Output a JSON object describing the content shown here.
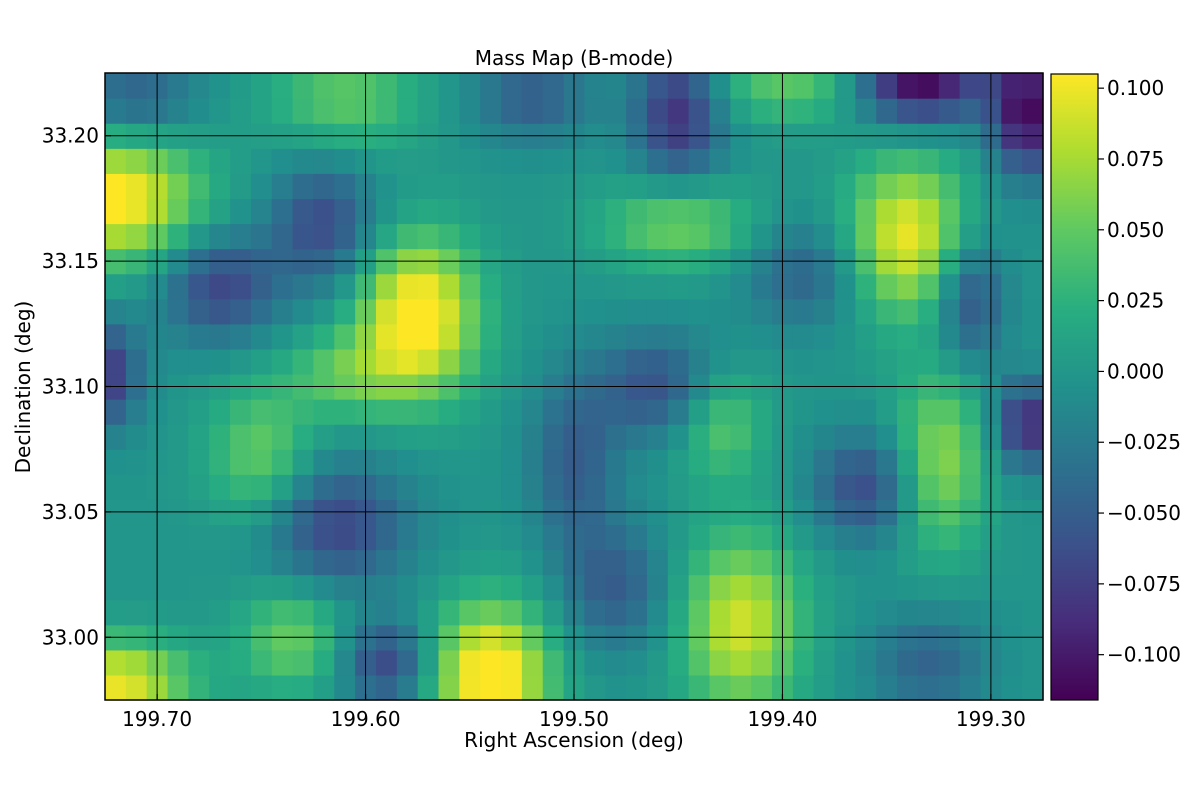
{
  "chart_data": {
    "type": "heatmap",
    "title": "Mass Map (B-mode)",
    "xlabel": "Right Ascension (deg)",
    "ylabel": "Declination (deg)",
    "xlim": [
      199.725,
      199.275
    ],
    "ylim": [
      32.975,
      33.225
    ],
    "x_ticks": [
      199.7,
      199.6,
      199.5,
      199.4,
      199.3
    ],
    "x_tick_labels": [
      "199.70",
      "199.60",
      "199.50",
      "199.40",
      "199.30"
    ],
    "y_ticks": [
      33.0,
      33.05,
      33.1,
      33.15,
      33.2
    ],
    "y_tick_labels": [
      "33.00",
      "33.05",
      "33.10",
      "33.15",
      "33.20"
    ],
    "grid": true,
    "colormap": "viridis",
    "colorbar": {
      "min": -0.116,
      "max": 0.105,
      "ticks": [
        0.1,
        0.075,
        0.05,
        0.025,
        0.0,
        -0.025,
        -0.05,
        -0.075,
        -0.1
      ],
      "tick_labels": [
        "0.100",
        "0.075",
        "0.050",
        "0.025",
        "0.000",
        "−0.025",
        "−0.050",
        "−0.075",
        "−0.100"
      ]
    },
    "grid_size": [
      45,
      25
    ],
    "blobs": [
      {
        "ra": 199.72,
        "dec": 33.175,
        "amp": 0.11,
        "sigma_ra": 0.028,
        "sigma_dec": 0.018
      },
      {
        "ra": 199.575,
        "dec": 33.128,
        "amp": 0.12,
        "sigma_ra": 0.02,
        "sigma_dec": 0.022
      },
      {
        "ra": 199.54,
        "dec": 32.985,
        "amp": 0.12,
        "sigma_ra": 0.02,
        "sigma_dec": 0.02
      },
      {
        "ra": 199.42,
        "dec": 33.005,
        "amp": 0.09,
        "sigma_ra": 0.02,
        "sigma_dec": 0.025
      },
      {
        "ra": 199.34,
        "dec": 33.16,
        "amp": 0.1,
        "sigma_ra": 0.02,
        "sigma_dec": 0.022
      },
      {
        "ra": 199.72,
        "dec": 32.982,
        "amp": 0.1,
        "sigma_ra": 0.025,
        "sigma_dec": 0.012
      },
      {
        "ra": 199.325,
        "dec": 33.07,
        "amp": 0.07,
        "sigma_ra": 0.015,
        "sigma_dec": 0.025
      },
      {
        "ra": 199.45,
        "dec": 33.165,
        "amp": 0.06,
        "sigma_ra": 0.025,
        "sigma_dec": 0.012
      },
      {
        "ra": 199.65,
        "dec": 33.072,
        "amp": 0.055,
        "sigma_ra": 0.018,
        "sigma_dec": 0.02
      },
      {
        "ra": 199.635,
        "dec": 33.0,
        "amp": 0.055,
        "sigma_ra": 0.018,
        "sigma_dec": 0.015
      },
      {
        "ra": 199.43,
        "dec": 33.085,
        "amp": 0.05,
        "sigma_ra": 0.015,
        "sigma_dec": 0.015
      },
      {
        "ra": 199.61,
        "dec": 33.215,
        "amp": 0.05,
        "sigma_ra": 0.025,
        "sigma_dec": 0.015
      },
      {
        "ra": 199.395,
        "dec": 33.22,
        "amp": 0.05,
        "sigma_ra": 0.03,
        "sigma_dec": 0.01
      },
      {
        "ra": 199.61,
        "dec": 33.105,
        "amp": 0.045,
        "sigma_ra": 0.02,
        "sigma_dec": 0.012
      },
      {
        "ra": 199.335,
        "dec": 33.222,
        "amp": -0.12,
        "sigma_ra": 0.022,
        "sigma_dec": 0.012
      },
      {
        "ra": 199.283,
        "dec": 33.21,
        "amp": -0.11,
        "sigma_ra": 0.012,
        "sigma_dec": 0.018
      },
      {
        "ra": 199.45,
        "dec": 33.21,
        "amp": -0.085,
        "sigma_ra": 0.015,
        "sigma_dec": 0.02
      },
      {
        "ra": 199.283,
        "dec": 33.085,
        "amp": -0.09,
        "sigma_ra": 0.01,
        "sigma_dec": 0.012
      },
      {
        "ra": 199.67,
        "dec": 33.14,
        "amp": -0.07,
        "sigma_ra": 0.02,
        "sigma_dec": 0.015
      },
      {
        "ra": 199.615,
        "dec": 33.045,
        "amp": -0.07,
        "sigma_ra": 0.025,
        "sigma_dec": 0.018
      },
      {
        "ra": 199.62,
        "dec": 33.165,
        "amp": -0.065,
        "sigma_ra": 0.018,
        "sigma_dec": 0.018
      },
      {
        "ra": 199.725,
        "dec": 33.105,
        "amp": -0.08,
        "sigma_ra": 0.012,
        "sigma_dec": 0.015
      },
      {
        "ra": 199.59,
        "dec": 32.99,
        "amp": -0.07,
        "sigma_ra": 0.015,
        "sigma_dec": 0.012
      },
      {
        "ra": 199.36,
        "dec": 33.06,
        "amp": -0.065,
        "sigma_ra": 0.018,
        "sigma_dec": 0.015
      },
      {
        "ra": 199.46,
        "dec": 33.1,
        "amp": -0.06,
        "sigma_ra": 0.02,
        "sigma_dec": 0.015
      },
      {
        "ra": 199.31,
        "dec": 33.135,
        "amp": -0.065,
        "sigma_ra": 0.012,
        "sigma_dec": 0.018
      },
      {
        "ra": 199.5,
        "dec": 33.07,
        "amp": -0.05,
        "sigma_ra": 0.015,
        "sigma_dec": 0.025
      },
      {
        "ra": 199.71,
        "dec": 33.215,
        "amp": -0.05,
        "sigma_ra": 0.02,
        "sigma_dec": 0.012
      },
      {
        "ra": 199.52,
        "dec": 33.215,
        "amp": -0.05,
        "sigma_ra": 0.02,
        "sigma_dec": 0.012
      },
      {
        "ra": 199.39,
        "dec": 33.145,
        "amp": -0.045,
        "sigma_ra": 0.02,
        "sigma_dec": 0.015
      },
      {
        "ra": 199.48,
        "dec": 33.02,
        "amp": -0.05,
        "sigma_ra": 0.018,
        "sigma_dec": 0.018
      },
      {
        "ra": 199.33,
        "dec": 32.99,
        "amp": -0.045,
        "sigma_ra": 0.02,
        "sigma_dec": 0.015
      }
    ]
  }
}
